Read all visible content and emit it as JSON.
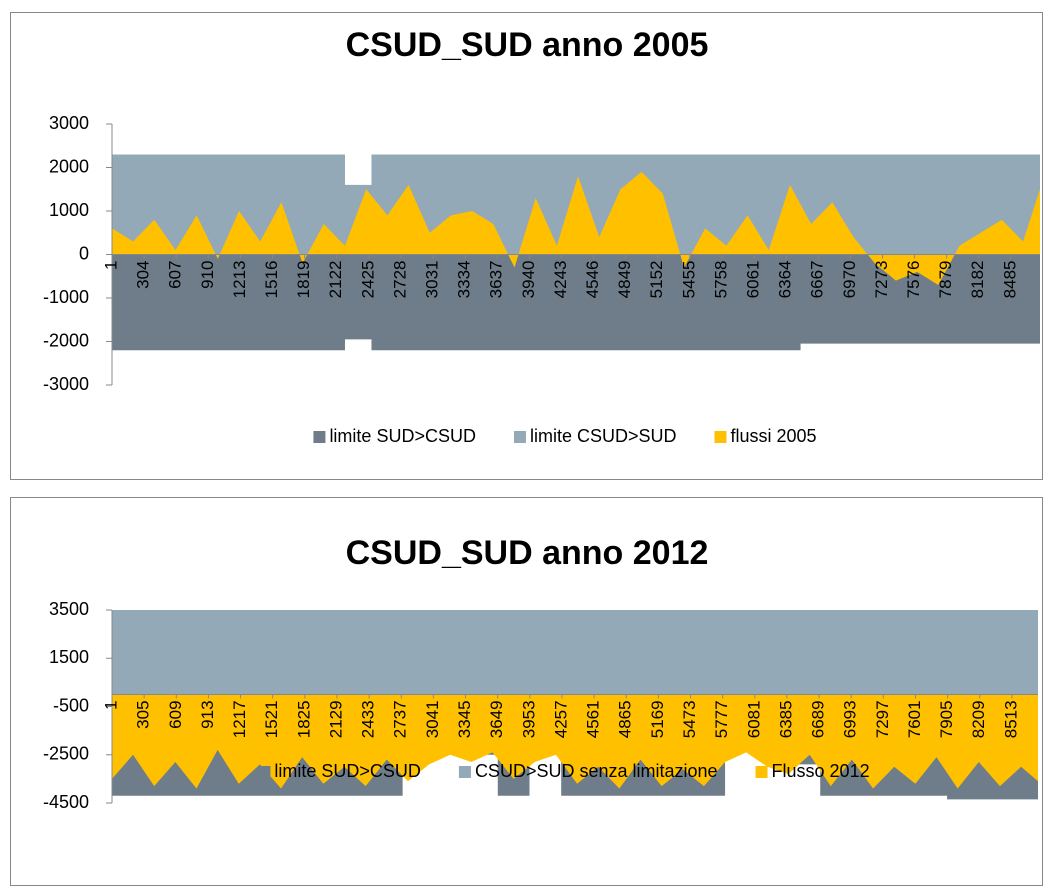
{
  "chart_data": [
    {
      "type": "area",
      "title": "CSUD_SUD anno 2005",
      "xlim": [
        1,
        8760
      ],
      "xticks": [
        1,
        304,
        607,
        910,
        1213,
        1516,
        1819,
        2122,
        2425,
        2728,
        3031,
        3334,
        3637,
        3940,
        4243,
        4546,
        4849,
        5152,
        5455,
        5758,
        6061,
        6364,
        6667,
        6970,
        7273,
        7576,
        7879,
        8182,
        8485
      ],
      "ylim": [
        -3000,
        3000
      ],
      "yticks": [
        -3000,
        -2000,
        -1000,
        0,
        1000,
        2000,
        3000
      ],
      "legend": "bottom",
      "series": [
        {
          "name": "limite SUD>CSUD",
          "color": "#6e7d89",
          "x": [
            1,
            2200,
            2200,
            2450,
            2450,
            6500,
            6500,
            8760
          ],
          "values": [
            -2200,
            -2200,
            -1950,
            -1950,
            -2200,
            -2200,
            -2050,
            -2050
          ]
        },
        {
          "name": "limite CSUD>SUD",
          "color": "#93a9b8",
          "x": [
            1,
            2200,
            2200,
            2450,
            2450,
            8760
          ],
          "values": [
            2300,
            2300,
            1600,
            1600,
            2300,
            2300
          ]
        },
        {
          "name": "flussi 2005",
          "color": "#ffc000",
          "x": [
            1,
            200,
            400,
            600,
            800,
            1000,
            1200,
            1400,
            1600,
            1800,
            2000,
            2200,
            2400,
            2600,
            2800,
            3000,
            3200,
            3400,
            3600,
            3800,
            4000,
            4200,
            4400,
            4600,
            4800,
            5000,
            5200,
            5400,
            5600,
            5800,
            6000,
            6200,
            6400,
            6600,
            6800,
            7000,
            7200,
            7400,
            7600,
            7800,
            8000,
            8200,
            8400,
            8600,
            8760
          ],
          "values": [
            600,
            300,
            800,
            100,
            900,
            -100,
            1000,
            300,
            1200,
            -200,
            700,
            200,
            1500,
            900,
            1600,
            500,
            900,
            1000,
            700,
            -300,
            1300,
            200,
            1800,
            400,
            1500,
            1900,
            1400,
            -300,
            600,
            200,
            900,
            100,
            1600,
            700,
            1200,
            400,
            -200,
            -600,
            -400,
            -700,
            200,
            500,
            800,
            300,
            1500
          ]
        }
      ]
    },
    {
      "type": "area",
      "title": "CSUD_SUD anno 2012",
      "xlim": [
        1,
        8760
      ],
      "xticks": [
        1,
        305,
        609,
        913,
        1217,
        1521,
        1825,
        2129,
        2433,
        2737,
        3041,
        3345,
        3649,
        3953,
        4257,
        4561,
        4865,
        5169,
        5473,
        5777,
        6081,
        6385,
        6689,
        6993,
        7297,
        7601,
        7905,
        8209,
        8513
      ],
      "ylim": [
        -4500,
        3500
      ],
      "yticks": [
        -4500,
        -2500,
        -500,
        1500,
        3500
      ],
      "legend": "bottom",
      "series": [
        {
          "name": "limite SUD>CSUD",
          "color": "#6e7d89",
          "x": [
            1,
            2750,
            2750,
            3650,
            3650,
            3950,
            3950,
            4250,
            4250,
            5800,
            5800,
            6200,
            6200,
            6700,
            6700,
            7900,
            7900,
            8760
          ],
          "values": [
            -4200,
            -4200,
            -2500,
            -2500,
            -4200,
            -4200,
            -2500,
            -2500,
            -4200,
            -4200,
            -2200,
            -2200,
            -2900,
            -2900,
            -4200,
            -4200,
            -4350,
            -4350
          ]
        },
        {
          "name": "CSUD>SUD senza limitazione",
          "color": "#93a9b8",
          "x": [
            1,
            8760
          ],
          "values": [
            3500,
            3500
          ]
        },
        {
          "name": "Flusso 2012",
          "color": "#ffc000",
          "x": [
            1,
            200,
            400,
            600,
            800,
            1000,
            1200,
            1400,
            1600,
            1800,
            2000,
            2200,
            2400,
            2600,
            2800,
            3000,
            3200,
            3400,
            3600,
            3800,
            4000,
            4200,
            4400,
            4600,
            4800,
            5000,
            5200,
            5400,
            5600,
            5800,
            6000,
            6200,
            6400,
            6600,
            6800,
            7000,
            7200,
            7400,
            7600,
            7800,
            8000,
            8200,
            8400,
            8600,
            8760
          ],
          "values": [
            -3500,
            -2500,
            -3800,
            -2800,
            -3900,
            -2300,
            -3700,
            -2900,
            -3900,
            -2600,
            -3700,
            -3000,
            -3800,
            -2700,
            -3600,
            -2900,
            -2500,
            -2800,
            -2400,
            -3500,
            -2800,
            -2500,
            -3700,
            -3000,
            -3900,
            -2700,
            -3800,
            -3100,
            -3800,
            -2800,
            -2400,
            -3000,
            -3300,
            -2500,
            -3800,
            -2700,
            -3900,
            -3000,
            -3700,
            -2600,
            -3900,
            -2800,
            -3800,
            -3000,
            -3600
          ]
        }
      ]
    }
  ]
}
